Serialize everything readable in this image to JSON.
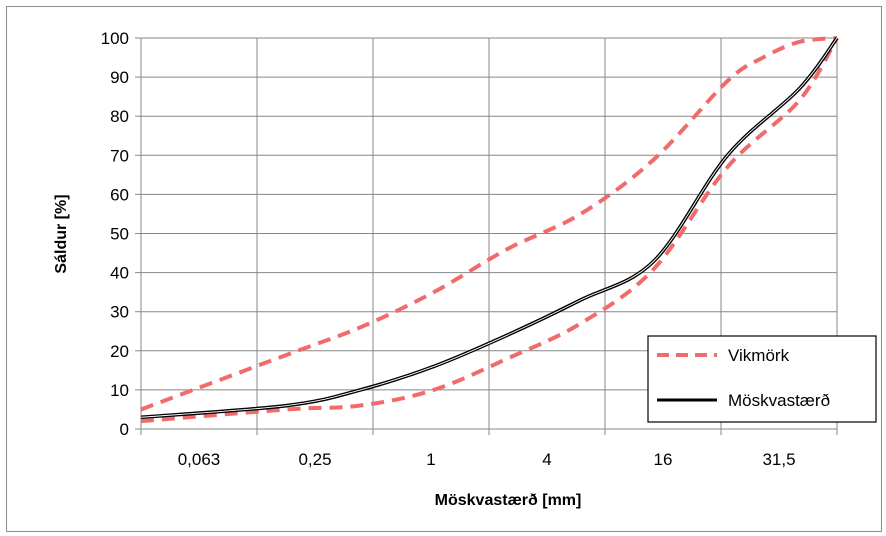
{
  "chart_data": {
    "type": "line",
    "title": "",
    "xlabel": "Möskvastærð [mm]",
    "ylabel": "Sáldur [%]",
    "ylim": [
      0,
      100
    ],
    "yticks": [
      "0",
      "10",
      "20",
      "30",
      "40",
      "50",
      "60",
      "70",
      "80",
      "90",
      "100"
    ],
    "xticks": [
      "0,063",
      "0,25",
      "1",
      "4",
      "16",
      "31,5"
    ],
    "x_scale": "log2",
    "grid": true,
    "legend_position": "right",
    "series": [
      {
        "name": "Vikmörk",
        "style": "dashed",
        "color": "#f26b6b",
        "points": [
          {
            "x": 0.063,
            "y": 5
          },
          {
            "x": 0.25,
            "y": 19
          },
          {
            "x": 0.5,
            "y": 26
          },
          {
            "x": 1,
            "y": 35
          },
          {
            "x": 2,
            "y": 46
          },
          {
            "x": 4,
            "y": 55
          },
          {
            "x": 8,
            "y": 69
          },
          {
            "x": 16,
            "y": 89
          },
          {
            "x": 22.4,
            "y": 95
          },
          {
            "x": 31.5,
            "y": 99
          },
          {
            "x": 45,
            "y": 100
          }
        ]
      },
      {
        "name": "Vikmörk",
        "style": "dashed",
        "color": "#f26b6b",
        "points": [
          {
            "x": 0.063,
            "y": 2
          },
          {
            "x": 0.25,
            "y": 5
          },
          {
            "x": 0.5,
            "y": 6
          },
          {
            "x": 1,
            "y": 10
          },
          {
            "x": 2,
            "y": 18
          },
          {
            "x": 4,
            "y": 27
          },
          {
            "x": 8,
            "y": 41
          },
          {
            "x": 16,
            "y": 67
          },
          {
            "x": 31.5,
            "y": 84
          },
          {
            "x": 45,
            "y": 100
          }
        ]
      },
      {
        "name": "Möskvastærð",
        "style": "solid",
        "color": "#000000",
        "points": [
          {
            "x": 0.063,
            "y": 3
          },
          {
            "x": 0.25,
            "y": 6
          },
          {
            "x": 0.5,
            "y": 10
          },
          {
            "x": 1,
            "y": 16
          },
          {
            "x": 2,
            "y": 24
          },
          {
            "x": 4,
            "y": 33
          },
          {
            "x": 8,
            "y": 43
          },
          {
            "x": 16,
            "y": 70
          },
          {
            "x": 31.5,
            "y": 87
          },
          {
            "x": 45,
            "y": 100
          }
        ]
      }
    ],
    "legend": [
      {
        "label": "Vikmörk",
        "style": "dashed",
        "color": "#f26b6b"
      },
      {
        "label": "Möskvastærð",
        "style": "solid",
        "color": "#000000"
      }
    ]
  }
}
